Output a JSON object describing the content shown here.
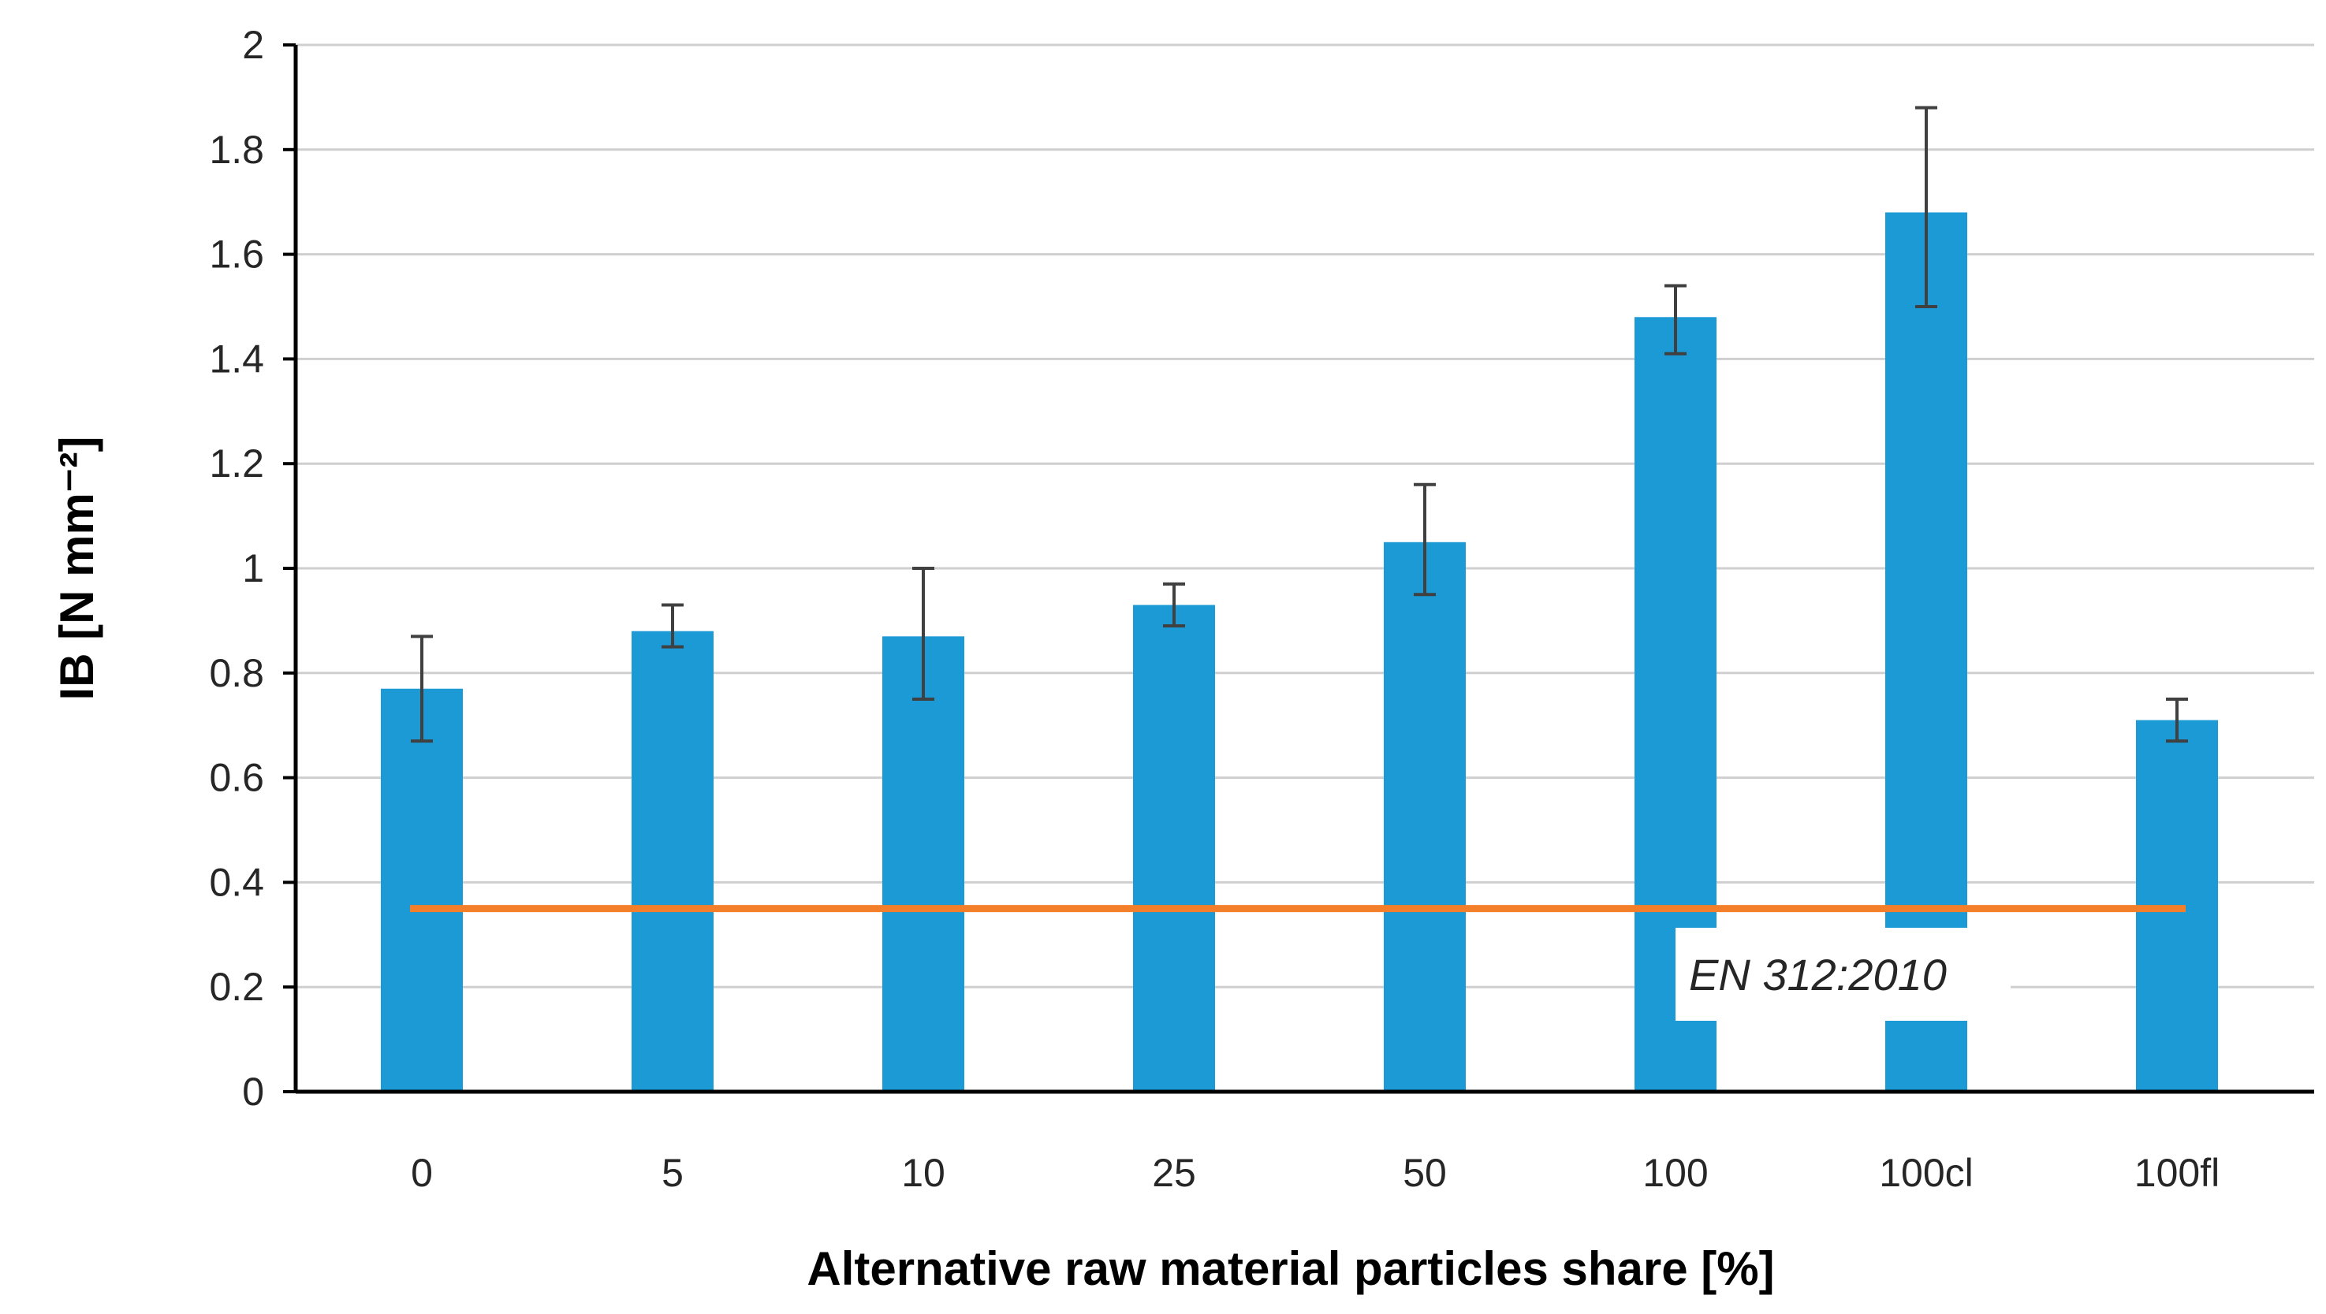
{
  "chart_data": {
    "type": "bar",
    "title": "",
    "xlabel": "Alternative raw material particles share [%]",
    "ylabel": "IB [N mm⁻²]",
    "categories": [
      "0",
      "5",
      "10",
      "25",
      "50",
      "100",
      "100cl",
      "100fl"
    ],
    "series": [
      {
        "name": "IB",
        "values": [
          0.77,
          0.88,
          0.87,
          0.93,
          1.05,
          1.48,
          1.68,
          0.71
        ],
        "error_low": [
          0.67,
          0.85,
          0.75,
          0.89,
          0.95,
          1.41,
          1.5,
          0.67
        ],
        "error_high": [
          0.87,
          0.93,
          1.0,
          0.97,
          1.16,
          1.54,
          1.88,
          0.75
        ]
      }
    ],
    "reference_line": {
      "label": "EN 312:2010",
      "value": 0.35
    },
    "ylim": [
      0,
      2
    ],
    "yticks": [
      0,
      0.2,
      0.4,
      0.6,
      0.8,
      1,
      1.2,
      1.4,
      1.6,
      1.8,
      2
    ],
    "ytick_labels": [
      "0",
      "0.2",
      "0.4",
      "0.6",
      "0.8",
      "1",
      "1.2",
      "1.4",
      "1.6",
      "1.8",
      "2"
    ],
    "grid": true,
    "colors": {
      "bar": "#1B9AD6",
      "reference_line": "#F47F2A",
      "error_bar": "#404040",
      "grid": "#CFCFCF",
      "axis": "#000000"
    }
  }
}
